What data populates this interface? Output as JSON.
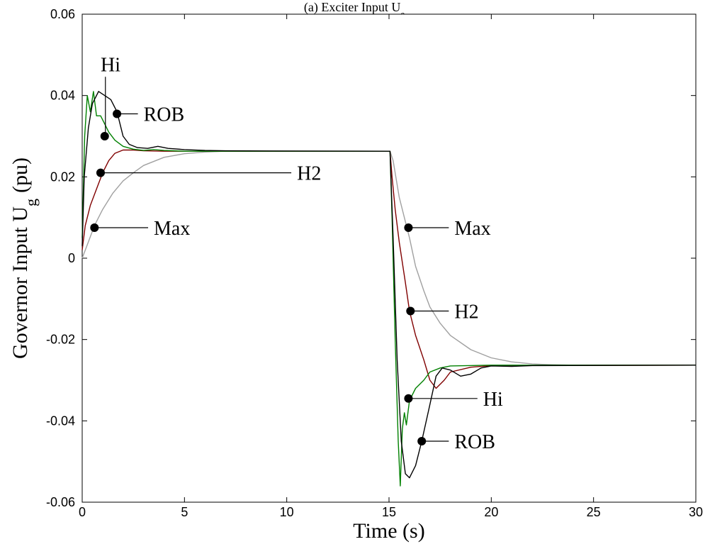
{
  "chart_data": {
    "type": "line",
    "title": "(a) Exciter Input U",
    "title_sub": "e",
    "xlabel": "Time (s)",
    "ylabel_main": "Governor Input U",
    "ylabel_sub": "g",
    "ylabel_unit": "(pu)",
    "xlim": [
      0,
      30
    ],
    "ylim": [
      -0.06,
      0.06
    ],
    "xticks": [
      0,
      5,
      10,
      15,
      20,
      25,
      30
    ],
    "xtick_labels": [
      "0",
      "5",
      "10",
      "15",
      "20",
      "25",
      "30"
    ],
    "yticks": [
      0.06,
      0.04,
      0.02,
      0,
      -0.02,
      -0.04,
      -0.06
    ],
    "ytick_labels": [
      "0.06",
      "0.04",
      "0.02",
      "0",
      "-0.02",
      "-0.04",
      "-0.06"
    ],
    "grid": false,
    "legend": "none",
    "series": [
      {
        "name": "Max",
        "color": "#a0a0a0",
        "points": [
          [
            0,
            0
          ],
          [
            0.3,
            0.004
          ],
          [
            0.6,
            0.008
          ],
          [
            1,
            0.012
          ],
          [
            1.5,
            0.016
          ],
          [
            2,
            0.019
          ],
          [
            2.5,
            0.021
          ],
          [
            3,
            0.0228
          ],
          [
            4,
            0.0248
          ],
          [
            5,
            0.0257
          ],
          [
            6,
            0.0261
          ],
          [
            7,
            0.0263
          ],
          [
            8,
            0.0263
          ],
          [
            15.05,
            0.0263
          ],
          [
            15.2,
            0.024
          ],
          [
            15.5,
            0.015
          ],
          [
            15.8,
            0.009
          ],
          [
            16,
            0.005
          ],
          [
            16.3,
            -0.002
          ],
          [
            16.7,
            -0.008
          ],
          [
            17,
            -0.012
          ],
          [
            17.5,
            -0.016
          ],
          [
            18,
            -0.019
          ],
          [
            19,
            -0.0225
          ],
          [
            20,
            -0.0245
          ],
          [
            21,
            -0.0255
          ],
          [
            22,
            -0.026
          ],
          [
            23,
            -0.0262
          ],
          [
            24,
            -0.0263
          ],
          [
            30,
            -0.0263
          ]
        ]
      },
      {
        "name": "H2",
        "color": "#800000",
        "points": [
          [
            0,
            0.002
          ],
          [
            0.15,
            0.008
          ],
          [
            0.4,
            0.013
          ],
          [
            0.7,
            0.017
          ],
          [
            1,
            0.021
          ],
          [
            1.3,
            0.024
          ],
          [
            1.6,
            0.0258
          ],
          [
            2,
            0.0266
          ],
          [
            2.5,
            0.0266
          ],
          [
            3,
            0.0264
          ],
          [
            4,
            0.0263
          ],
          [
            15.05,
            0.0263
          ],
          [
            15.15,
            0.02
          ],
          [
            15.3,
            0.012
          ],
          [
            15.5,
            0.004
          ],
          [
            15.8,
            -0.006
          ],
          [
            16,
            -0.013
          ],
          [
            16.3,
            -0.019
          ],
          [
            16.7,
            -0.025
          ],
          [
            17,
            -0.03
          ],
          [
            17.3,
            -0.032
          ],
          [
            17.7,
            -0.03
          ],
          [
            18,
            -0.028
          ],
          [
            19,
            -0.0268
          ],
          [
            20,
            -0.0264
          ],
          [
            30,
            -0.0263
          ]
        ]
      },
      {
        "name": "Hi",
        "color": "#008000",
        "points": [
          [
            0,
            0.005
          ],
          [
            0.12,
            0.03
          ],
          [
            0.25,
            0.04
          ],
          [
            0.4,
            0.036
          ],
          [
            0.55,
            0.041
          ],
          [
            0.7,
            0.035
          ],
          [
            0.9,
            0.035
          ],
          [
            1.1,
            0.033
          ],
          [
            1.3,
            0.031
          ],
          [
            1.6,
            0.029
          ],
          [
            2,
            0.0275
          ],
          [
            2.5,
            0.0268
          ],
          [
            3,
            0.0265
          ],
          [
            3.5,
            0.0267
          ],
          [
            4,
            0.0265
          ],
          [
            5,
            0.0263
          ],
          [
            15.05,
            0.0263
          ],
          [
            15.15,
            0.01
          ],
          [
            15.3,
            -0.02
          ],
          [
            15.45,
            -0.045
          ],
          [
            15.55,
            -0.056
          ],
          [
            15.65,
            -0.042
          ],
          [
            15.75,
            -0.038
          ],
          [
            15.85,
            -0.041
          ],
          [
            16,
            -0.035
          ],
          [
            16.3,
            -0.032
          ],
          [
            16.7,
            -0.03
          ],
          [
            17,
            -0.028
          ],
          [
            17.5,
            -0.027
          ],
          [
            18,
            -0.0265
          ],
          [
            20,
            -0.0263
          ],
          [
            30,
            -0.0263
          ]
        ]
      },
      {
        "name": "ROB",
        "color": "#000000",
        "points": [
          [
            0,
            0.003
          ],
          [
            0.1,
            0.02
          ],
          [
            0.3,
            0.032
          ],
          [
            0.5,
            0.038
          ],
          [
            0.8,
            0.041
          ],
          [
            1.1,
            0.04
          ],
          [
            1.4,
            0.039
          ],
          [
            1.7,
            0.036
          ],
          [
            2,
            0.03
          ],
          [
            2.3,
            0.028
          ],
          [
            2.7,
            0.0272
          ],
          [
            3.2,
            0.027
          ],
          [
            3.7,
            0.0275
          ],
          [
            4.2,
            0.027
          ],
          [
            5,
            0.0267
          ],
          [
            6,
            0.0265
          ],
          [
            7,
            0.0264
          ],
          [
            15.05,
            0.0263
          ],
          [
            15.2,
            0.005
          ],
          [
            15.4,
            -0.025
          ],
          [
            15.6,
            -0.045
          ],
          [
            15.8,
            -0.053
          ],
          [
            16,
            -0.054
          ],
          [
            16.3,
            -0.051
          ],
          [
            16.6,
            -0.045
          ],
          [
            17,
            -0.036
          ],
          [
            17.3,
            -0.029
          ],
          [
            17.6,
            -0.027
          ],
          [
            18,
            -0.0275
          ],
          [
            18.5,
            -0.029
          ],
          [
            19,
            -0.0285
          ],
          [
            19.5,
            -0.027
          ],
          [
            20,
            -0.0265
          ],
          [
            21,
            -0.0266
          ],
          [
            22,
            -0.0264
          ],
          [
            30,
            -0.0263
          ]
        ]
      }
    ],
    "annotations": [
      {
        "label": "Hi",
        "text_xy": [
          0.9,
          0.046
        ],
        "dot": [
          1.1,
          0.03
        ],
        "leader": "vertical"
      },
      {
        "label": "ROB",
        "text_xy": [
          3.0,
          0.0355
        ],
        "dot": [
          1.7,
          0.0355
        ],
        "leader": "horizontal"
      },
      {
        "label": "H2",
        "text_xy": [
          10.5,
          0.021
        ],
        "dot": [
          0.9,
          0.021
        ],
        "leader": "horizontal"
      },
      {
        "label": "Max",
        "text_xy": [
          3.5,
          0.0075
        ],
        "dot": [
          0.6,
          0.0075
        ],
        "leader": "horizontal"
      },
      {
        "label": "Max",
        "text_xy": [
          18.2,
          0.0075
        ],
        "dot": [
          15.95,
          0.0075
        ],
        "leader": "horizontal"
      },
      {
        "label": "H2",
        "text_xy": [
          18.2,
          -0.013
        ],
        "dot": [
          16.05,
          -0.013
        ],
        "leader": "horizontal"
      },
      {
        "label": "Hi",
        "text_xy": [
          19.6,
          -0.0345
        ],
        "dot": [
          15.95,
          -0.0345
        ],
        "leader": "horizontal"
      },
      {
        "label": "ROB",
        "text_xy": [
          18.2,
          -0.045
        ],
        "dot": [
          16.6,
          -0.045
        ],
        "leader": "horizontal"
      }
    ]
  }
}
